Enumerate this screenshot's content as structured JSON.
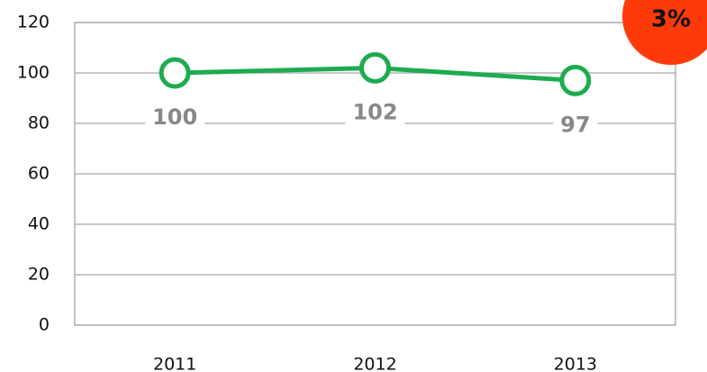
{
  "chart_data": {
    "type": "line",
    "categories": [
      "2011",
      "2012",
      "2013"
    ],
    "series": [
      {
        "name": null,
        "color": "#1eab4f",
        "values": [
          100,
          102,
          97
        ]
      }
    ],
    "ylim": [
      0,
      120
    ],
    "yticks": [
      0,
      20,
      40,
      60,
      80,
      100,
      120
    ],
    "grid": true,
    "annotation": "3%"
  }
}
